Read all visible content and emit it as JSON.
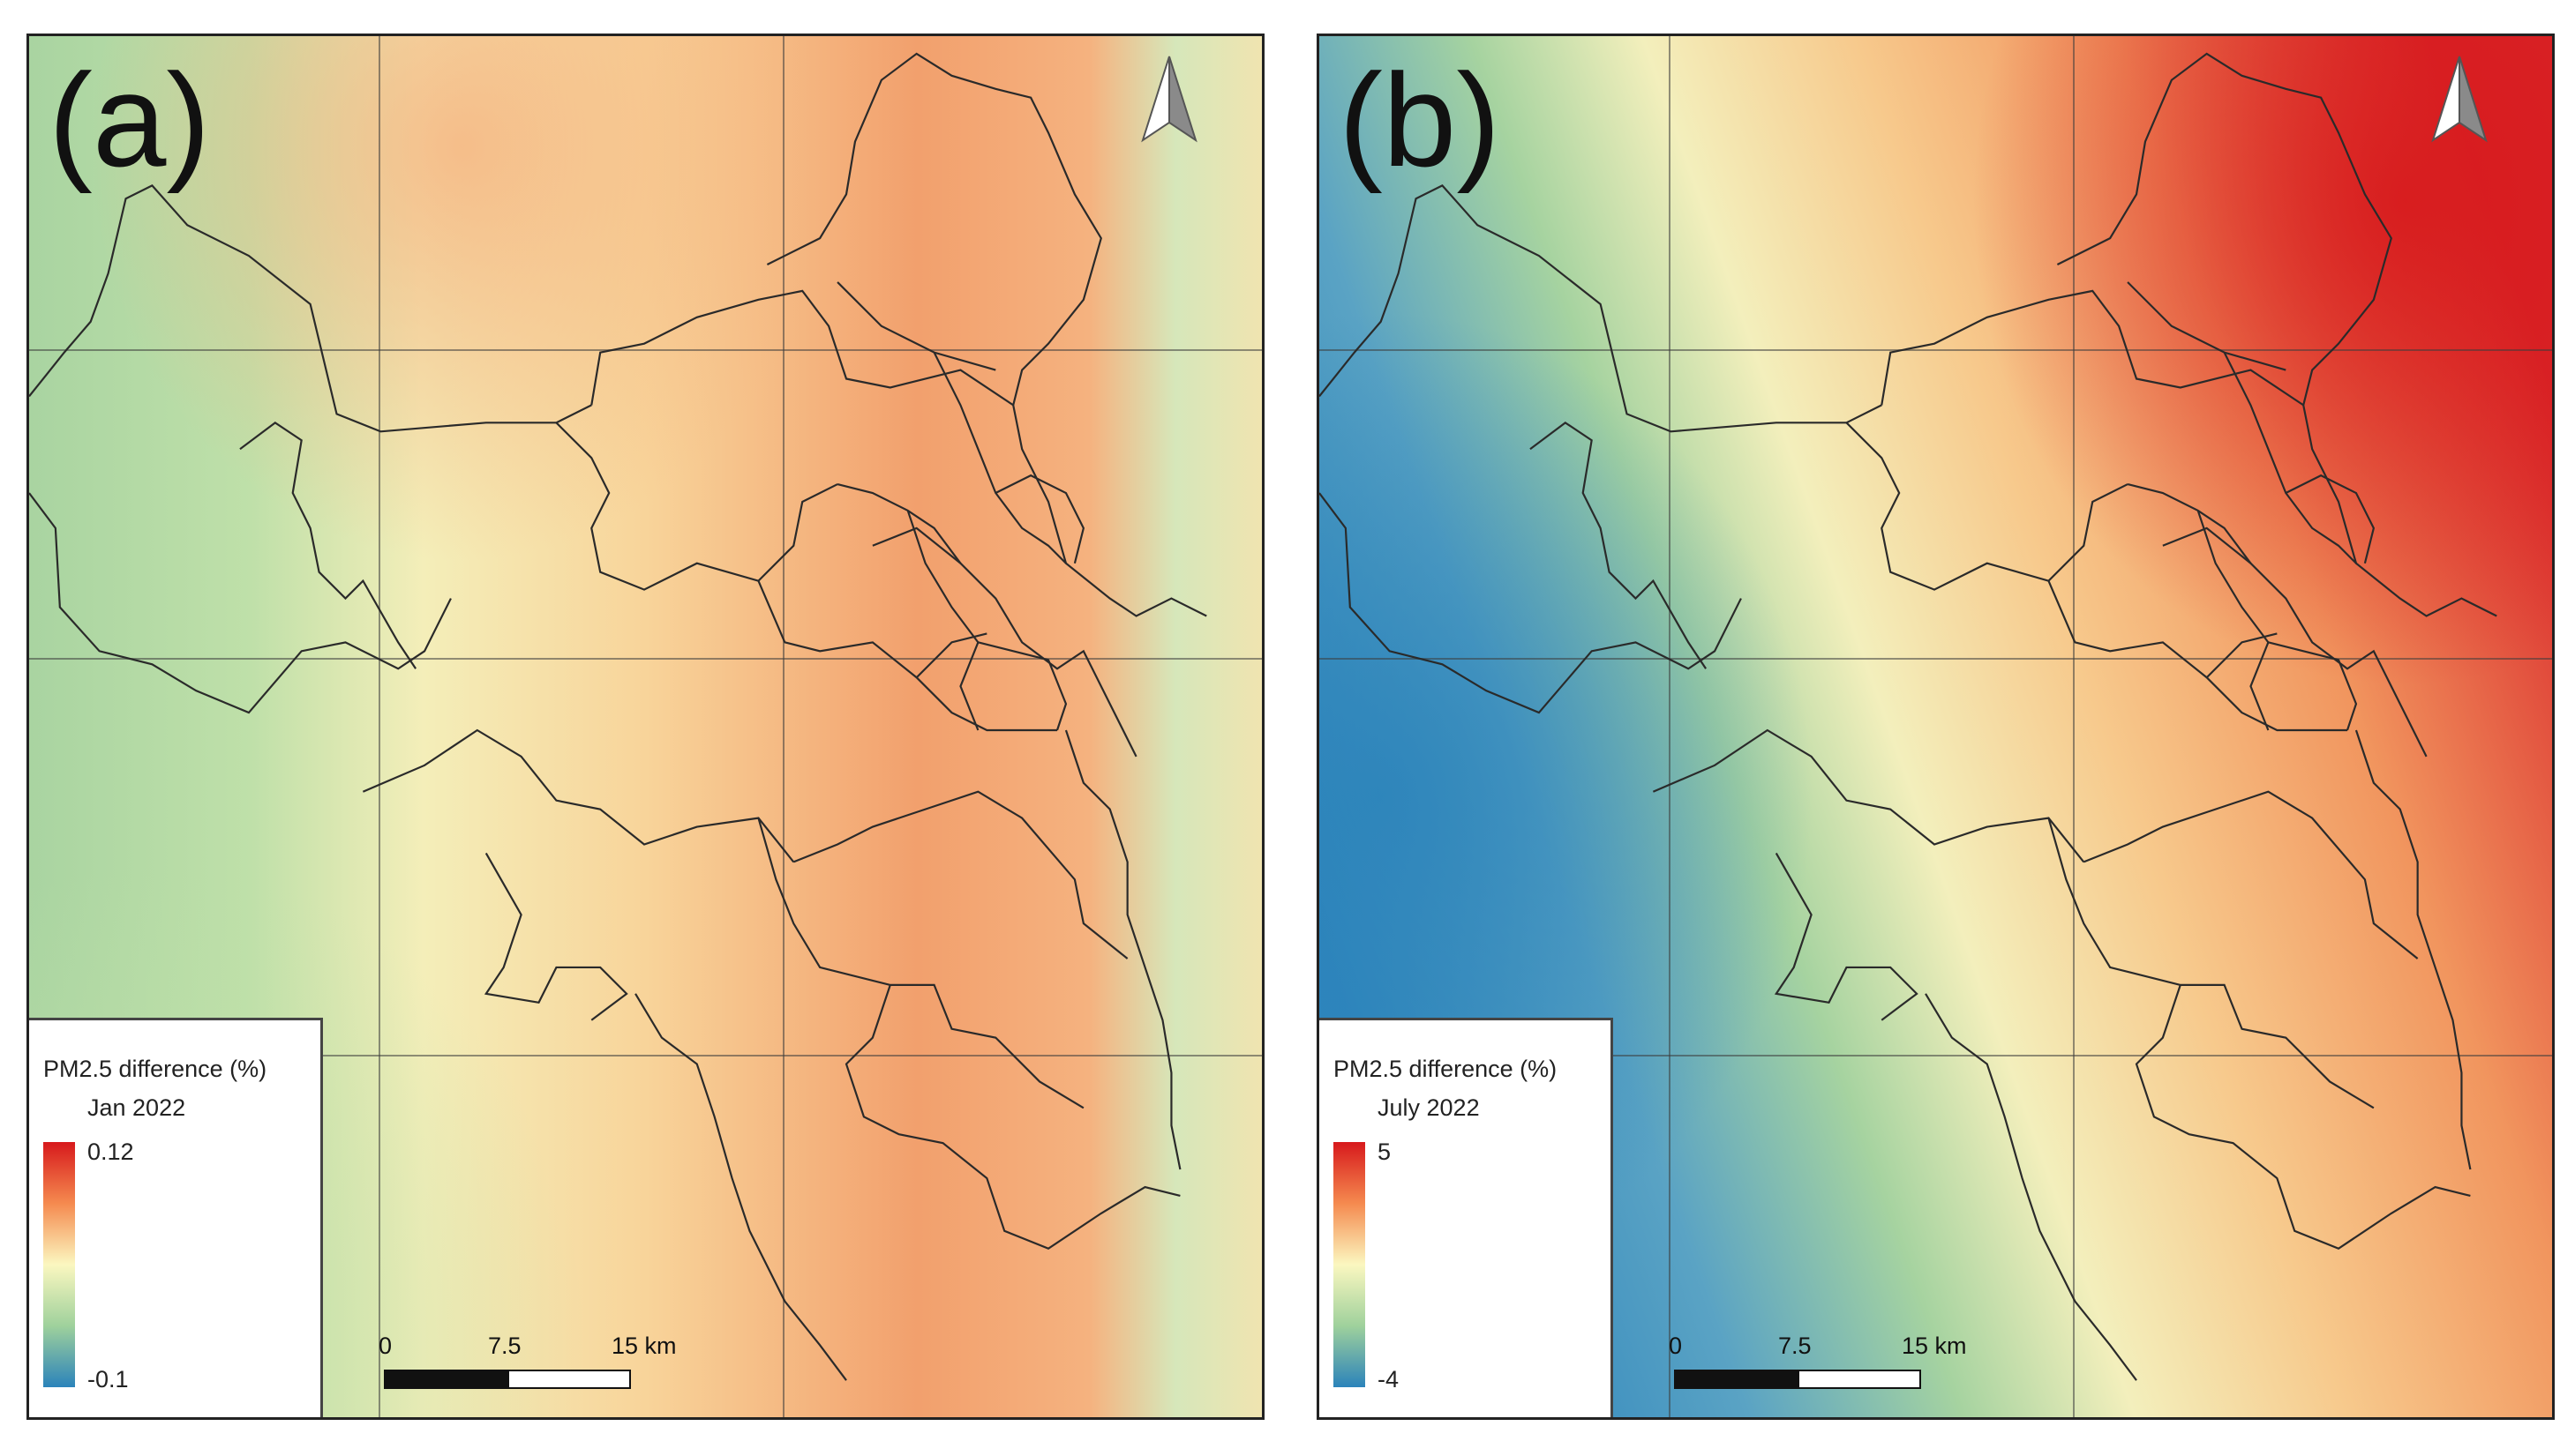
{
  "panels": [
    {
      "label": "(a)",
      "legend": {
        "title": "PM2.5 difference (%)",
        "period": "Jan 2022",
        "max": "0.12",
        "min": "-0.1"
      },
      "scale_bar": {
        "labels": [
          "0",
          "7.5",
          "15 km"
        ]
      },
      "icons": {
        "north_arrow": "north-arrow-icon"
      }
    },
    {
      "label": "(b)",
      "legend": {
        "title": "PM2.5 difference (%)",
        "period": "July 2022",
        "max": "5",
        "min": "-4"
      },
      "scale_bar": {
        "labels": [
          "0",
          "7.5",
          "15 km"
        ]
      },
      "icons": {
        "north_arrow": "north-arrow-icon"
      }
    }
  ],
  "colors": {
    "high": "#d7191c",
    "mid_high": "#f58a4f",
    "mid": "#fbf7c0",
    "mid_low": "#9fd19c",
    "low": "#2b83ba",
    "boundary": "#2a2a2a"
  }
}
